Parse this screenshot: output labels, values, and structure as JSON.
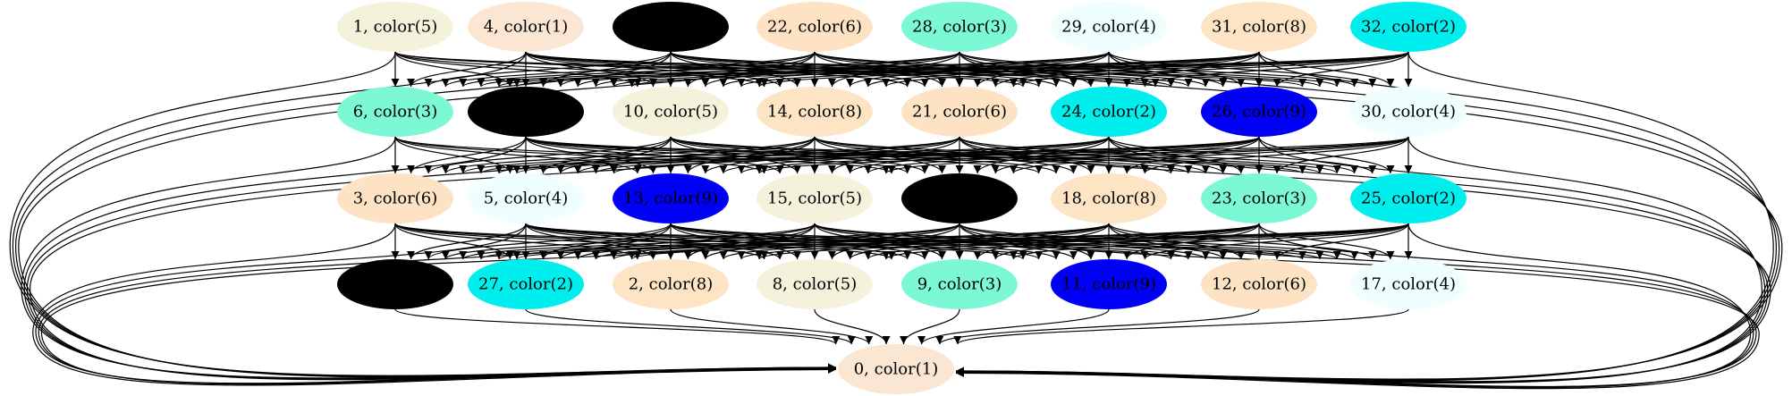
{
  "graph": {
    "colors": {
      "color1": "#fae6d2",
      "color2": "#00eeee",
      "color3": "#7cf9d4",
      "color4": "#effefe",
      "color5": "#f4f2db",
      "color6": "#fde3c4",
      "color8": "#fce4c4",
      "color9": "#0000f5",
      "blank": "#000000"
    },
    "nodes": [
      {
        "id": "n1",
        "label": "1, color(5)",
        "color": "color5"
      },
      {
        "id": "n4",
        "label": "4, color(1)",
        "color": "color1"
      },
      {
        "id": "b1",
        "label": "",
        "color": "blank"
      },
      {
        "id": "n22",
        "label": "22, color(6)",
        "color": "color6"
      },
      {
        "id": "n28",
        "label": "28, color(3)",
        "color": "color3"
      },
      {
        "id": "n29",
        "label": "29, color(4)",
        "color": "color4"
      },
      {
        "id": "n31",
        "label": "31, color(8)",
        "color": "color8"
      },
      {
        "id": "n32",
        "label": "32, color(2)",
        "color": "color2"
      },
      {
        "id": "n6",
        "label": "6, color(3)",
        "color": "color3"
      },
      {
        "id": "b2",
        "label": "",
        "color": "blank"
      },
      {
        "id": "n10",
        "label": "10, color(5)",
        "color": "color5"
      },
      {
        "id": "n14",
        "label": "14, color(8)",
        "color": "color8"
      },
      {
        "id": "n21",
        "label": "21, color(6)",
        "color": "color6"
      },
      {
        "id": "n24",
        "label": "24, color(2)",
        "color": "color2"
      },
      {
        "id": "n26",
        "label": "26, color(9)",
        "color": "color9"
      },
      {
        "id": "n30",
        "label": "30, color(4)",
        "color": "color4"
      },
      {
        "id": "n3",
        "label": "3, color(6)",
        "color": "color6"
      },
      {
        "id": "n5",
        "label": "5, color(4)",
        "color": "color4"
      },
      {
        "id": "n13",
        "label": "13, color(9)",
        "color": "color9"
      },
      {
        "id": "n15",
        "label": "15, color(5)",
        "color": "color5"
      },
      {
        "id": "b3",
        "label": "",
        "color": "blank"
      },
      {
        "id": "n18",
        "label": "18, color(8)",
        "color": "color8"
      },
      {
        "id": "n23",
        "label": "23, color(3)",
        "color": "color3"
      },
      {
        "id": "n25",
        "label": "25, color(2)",
        "color": "color2"
      },
      {
        "id": "b4",
        "label": "",
        "color": "blank"
      },
      {
        "id": "n27",
        "label": "27, color(2)",
        "color": "color2"
      },
      {
        "id": "n2",
        "label": "2, color(8)",
        "color": "color8"
      },
      {
        "id": "n8",
        "label": "8, color(5)",
        "color": "color5"
      },
      {
        "id": "n9",
        "label": "9, color(3)",
        "color": "color3"
      },
      {
        "id": "n11",
        "label": "11, color(9)",
        "color": "color9"
      },
      {
        "id": "n12",
        "label": "12, color(6)",
        "color": "color6"
      },
      {
        "id": "n17",
        "label": "17, color(4)",
        "color": "color4"
      },
      {
        "id": "n0",
        "label": "0, color(1)",
        "color": "color1"
      }
    ],
    "ranks": [
      [
        "n1",
        "n4",
        "b1",
        "n22",
        "n28",
        "n29",
        "n31",
        "n32"
      ],
      [
        "n6",
        "b2",
        "n10",
        "n14",
        "n21",
        "n24",
        "n26",
        "n30"
      ],
      [
        "n3",
        "n5",
        "n13",
        "n15",
        "b3",
        "n18",
        "n23",
        "n25"
      ],
      [
        "b4",
        "n27",
        "n2",
        "n8",
        "n9",
        "n11",
        "n12",
        "n17"
      ],
      [
        "n0"
      ]
    ],
    "edges": [
      [
        "n1",
        "n6"
      ],
      [
        "n1",
        "b2"
      ],
      [
        "n1",
        "n10"
      ],
      [
        "n1",
        "n14"
      ],
      [
        "n1",
        "n24"
      ],
      [
        "n1",
        "n26"
      ],
      [
        "n1",
        "n0"
      ],
      [
        "n4",
        "n6"
      ],
      [
        "n4",
        "b2"
      ],
      [
        "n4",
        "n10"
      ],
      [
        "n4",
        "n14"
      ],
      [
        "n4",
        "n21"
      ],
      [
        "n4",
        "n24"
      ],
      [
        "n4",
        "n26"
      ],
      [
        "n4",
        "n30"
      ],
      [
        "n4",
        "n0"
      ],
      [
        "b1",
        "n6"
      ],
      [
        "b1",
        "b2"
      ],
      [
        "b1",
        "n10"
      ],
      [
        "b1",
        "n14"
      ],
      [
        "b1",
        "n21"
      ],
      [
        "b1",
        "n24"
      ],
      [
        "b1",
        "n26"
      ],
      [
        "b1",
        "n30"
      ],
      [
        "b1",
        "n0"
      ],
      [
        "n22",
        "n6"
      ],
      [
        "n22",
        "b2"
      ],
      [
        "n22",
        "n10"
      ],
      [
        "n22",
        "n14"
      ],
      [
        "n22",
        "n21"
      ],
      [
        "n22",
        "n24"
      ],
      [
        "n22",
        "n26"
      ],
      [
        "n22",
        "n30"
      ],
      [
        "n22",
        "n0"
      ],
      [
        "n28",
        "n6"
      ],
      [
        "n28",
        "b2"
      ],
      [
        "n28",
        "n10"
      ],
      [
        "n28",
        "n14"
      ],
      [
        "n28",
        "n21"
      ],
      [
        "n28",
        "n24"
      ],
      [
        "n28",
        "n26"
      ],
      [
        "n28",
        "n30"
      ],
      [
        "n28",
        "n0"
      ],
      [
        "n29",
        "n6"
      ],
      [
        "n29",
        "b2"
      ],
      [
        "n29",
        "n10"
      ],
      [
        "n29",
        "n14"
      ],
      [
        "n29",
        "n21"
      ],
      [
        "n29",
        "n24"
      ],
      [
        "n29",
        "n26"
      ],
      [
        "n29",
        "n30"
      ],
      [
        "n29",
        "n0"
      ],
      [
        "n31",
        "n6"
      ],
      [
        "n31",
        "b2"
      ],
      [
        "n31",
        "n10"
      ],
      [
        "n31",
        "n14"
      ],
      [
        "n31",
        "n21"
      ],
      [
        "n31",
        "n24"
      ],
      [
        "n31",
        "n26"
      ],
      [
        "n31",
        "n30"
      ],
      [
        "n31",
        "n0"
      ],
      [
        "n32",
        "n6"
      ],
      [
        "n32",
        "b2"
      ],
      [
        "n32",
        "n10"
      ],
      [
        "n32",
        "n14"
      ],
      [
        "n32",
        "n21"
      ],
      [
        "n32",
        "n24"
      ],
      [
        "n32",
        "n26"
      ],
      [
        "n32",
        "n30"
      ],
      [
        "n32",
        "n0"
      ],
      [
        "n6",
        "n3"
      ],
      [
        "n6",
        "n5"
      ],
      [
        "n6",
        "n13"
      ],
      [
        "n6",
        "n15"
      ],
      [
        "n6",
        "b3"
      ],
      [
        "n6",
        "n0"
      ],
      [
        "b2",
        "n3"
      ],
      [
        "b2",
        "n5"
      ],
      [
        "b2",
        "n13"
      ],
      [
        "b2",
        "n15"
      ],
      [
        "b2",
        "b3"
      ],
      [
        "b2",
        "n18"
      ],
      [
        "b2",
        "n23"
      ],
      [
        "b2",
        "n25"
      ],
      [
        "b2",
        "n0"
      ],
      [
        "n10",
        "n3"
      ],
      [
        "n10",
        "n5"
      ],
      [
        "n10",
        "n13"
      ],
      [
        "n10",
        "n15"
      ],
      [
        "n10",
        "b3"
      ],
      [
        "n10",
        "n18"
      ],
      [
        "n10",
        "n23"
      ],
      [
        "n10",
        "n25"
      ],
      [
        "n10",
        "n0"
      ],
      [
        "n14",
        "n3"
      ],
      [
        "n14",
        "n5"
      ],
      [
        "n14",
        "n13"
      ],
      [
        "n14",
        "n15"
      ],
      [
        "n14",
        "b3"
      ],
      [
        "n14",
        "n18"
      ],
      [
        "n14",
        "n23"
      ],
      [
        "n14",
        "n25"
      ],
      [
        "n14",
        "n0"
      ],
      [
        "n21",
        "n3"
      ],
      [
        "n21",
        "n5"
      ],
      [
        "n21",
        "n13"
      ],
      [
        "n21",
        "n15"
      ],
      [
        "n21",
        "b3"
      ],
      [
        "n21",
        "n18"
      ],
      [
        "n21",
        "n23"
      ],
      [
        "n21",
        "n25"
      ],
      [
        "n21",
        "n0"
      ],
      [
        "n24",
        "n3"
      ],
      [
        "n24",
        "n5"
      ],
      [
        "n24",
        "n13"
      ],
      [
        "n24",
        "n15"
      ],
      [
        "n24",
        "b3"
      ],
      [
        "n24",
        "n18"
      ],
      [
        "n24",
        "n23"
      ],
      [
        "n24",
        "n25"
      ],
      [
        "n24",
        "n0"
      ],
      [
        "n26",
        "n3"
      ],
      [
        "n26",
        "n5"
      ],
      [
        "n26",
        "n13"
      ],
      [
        "n26",
        "n15"
      ],
      [
        "n26",
        "b3"
      ],
      [
        "n26",
        "n18"
      ],
      [
        "n26",
        "n23"
      ],
      [
        "n26",
        "n25"
      ],
      [
        "n26",
        "n0"
      ],
      [
        "n30",
        "n3"
      ],
      [
        "n30",
        "n13"
      ],
      [
        "n30",
        "n15"
      ],
      [
        "n30",
        "b3"
      ],
      [
        "n30",
        "n18"
      ],
      [
        "n30",
        "n23"
      ],
      [
        "n30",
        "n25"
      ],
      [
        "n30",
        "n0"
      ],
      [
        "n3",
        "b4"
      ],
      [
        "n3",
        "n27"
      ],
      [
        "n3",
        "n2"
      ],
      [
        "n3",
        "n8"
      ],
      [
        "n3",
        "n9"
      ],
      [
        "n3",
        "n11"
      ],
      [
        "n3",
        "n0"
      ],
      [
        "n5",
        "b4"
      ],
      [
        "n5",
        "n27"
      ],
      [
        "n5",
        "n2"
      ],
      [
        "n5",
        "n8"
      ],
      [
        "n5",
        "n9"
      ],
      [
        "n5",
        "n11"
      ],
      [
        "n5",
        "n12"
      ],
      [
        "n5",
        "n17"
      ],
      [
        "n5",
        "n0"
      ],
      [
        "n13",
        "b4"
      ],
      [
        "n13",
        "n27"
      ],
      [
        "n13",
        "n2"
      ],
      [
        "n13",
        "n8"
      ],
      [
        "n13",
        "n9"
      ],
      [
        "n13",
        "n11"
      ],
      [
        "n13",
        "n12"
      ],
      [
        "n13",
        "n17"
      ],
      [
        "n13",
        "n0"
      ],
      [
        "n15",
        "b4"
      ],
      [
        "n15",
        "n27"
      ],
      [
        "n15",
        "n2"
      ],
      [
        "n15",
        "n8"
      ],
      [
        "n15",
        "n9"
      ],
      [
        "n15",
        "n11"
      ],
      [
        "n15",
        "n12"
      ],
      [
        "n15",
        "n17"
      ],
      [
        "n15",
        "n0"
      ],
      [
        "b3",
        "b4"
      ],
      [
        "b3",
        "n27"
      ],
      [
        "b3",
        "n2"
      ],
      [
        "b3",
        "n8"
      ],
      [
        "b3",
        "n9"
      ],
      [
        "b3",
        "n11"
      ],
      [
        "b3",
        "n12"
      ],
      [
        "b3",
        "n17"
      ],
      [
        "b3",
        "n0"
      ],
      [
        "n18",
        "b4"
      ],
      [
        "n18",
        "n27"
      ],
      [
        "n18",
        "n2"
      ],
      [
        "n18",
        "n8"
      ],
      [
        "n18",
        "n9"
      ],
      [
        "n18",
        "n11"
      ],
      [
        "n18",
        "n12"
      ],
      [
        "n18",
        "n17"
      ],
      [
        "n18",
        "n0"
      ],
      [
        "n23",
        "b4"
      ],
      [
        "n23",
        "n27"
      ],
      [
        "n23",
        "n2"
      ],
      [
        "n23",
        "n8"
      ],
      [
        "n23",
        "n9"
      ],
      [
        "n23",
        "n11"
      ],
      [
        "n23",
        "n12"
      ],
      [
        "n23",
        "n17"
      ],
      [
        "n23",
        "n0"
      ],
      [
        "n25",
        "b4"
      ],
      [
        "n25",
        "n27"
      ],
      [
        "n25",
        "n2"
      ],
      [
        "n25",
        "n8"
      ],
      [
        "n25",
        "n9"
      ],
      [
        "n25",
        "n11"
      ],
      [
        "n25",
        "n12"
      ],
      [
        "n25",
        "n17"
      ],
      [
        "n25",
        "n0"
      ],
      [
        "b4",
        "n0"
      ],
      [
        "n27",
        "n0"
      ],
      [
        "n2",
        "n0"
      ],
      [
        "n8",
        "n0"
      ],
      [
        "n9",
        "n0"
      ],
      [
        "n11",
        "n0"
      ],
      [
        "n12",
        "n0"
      ],
      [
        "n17",
        "n0"
      ]
    ]
  }
}
